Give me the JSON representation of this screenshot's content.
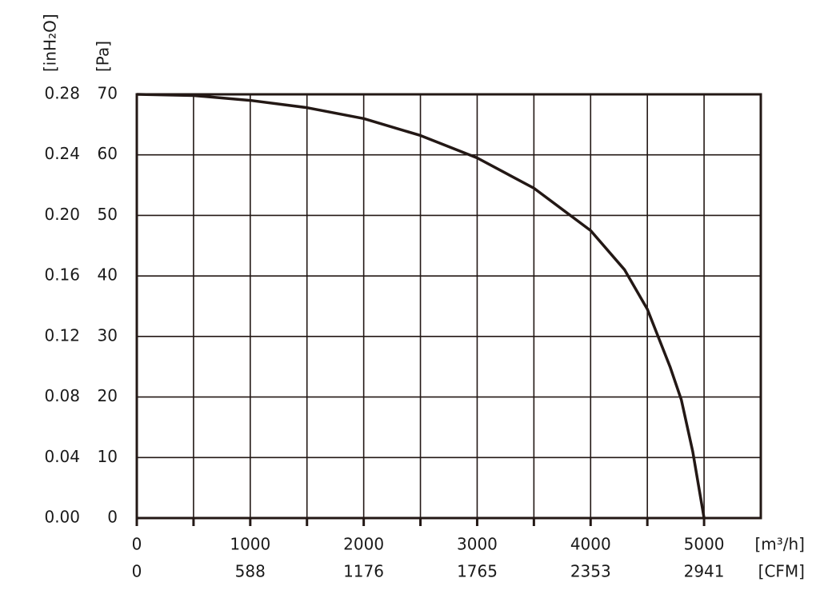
{
  "chart_data": {
    "type": "line",
    "x_label": "[m³/h]",
    "x2_label": "[CFM]",
    "y_label": "[Pa]",
    "y2_label": "[inH₂O]",
    "x": [
      0,
      500,
      1000,
      1500,
      2000,
      2500,
      3000,
      3500,
      4000,
      4300,
      4500,
      4700,
      4800,
      4900,
      5000
    ],
    "series": [
      {
        "color": "#231815",
        "values": [
          70,
          69.8,
          69,
          67.8,
          66,
          63.2,
          59.5,
          54.5,
          47.5,
          41,
          34.5,
          25,
          19.5,
          11,
          0
        ]
      }
    ],
    "xlim": [
      0,
      5500
    ],
    "xticks": [
      0,
      1000,
      2000,
      3000,
      4000,
      5000
    ],
    "xminorticks": [
      500,
      1500,
      2500,
      3500,
      4500
    ],
    "x2lim": [
      0,
      3235.3
    ],
    "x2ticks": [
      0,
      588,
      1176,
      1765,
      2353,
      2941
    ],
    "ylim": [
      0,
      70
    ],
    "yticks": [
      0,
      10,
      20,
      30,
      40,
      50,
      60,
      70
    ],
    "y2lim": [
      0,
      0.28
    ],
    "y2ticks": [
      {
        "value": 0,
        "label": "0.00"
      },
      0.04,
      0.08,
      0.12,
      0.16,
      {
        "value": 0.2,
        "label": "0.20"
      },
      0.24,
      0.28
    ],
    "grid": true
  }
}
